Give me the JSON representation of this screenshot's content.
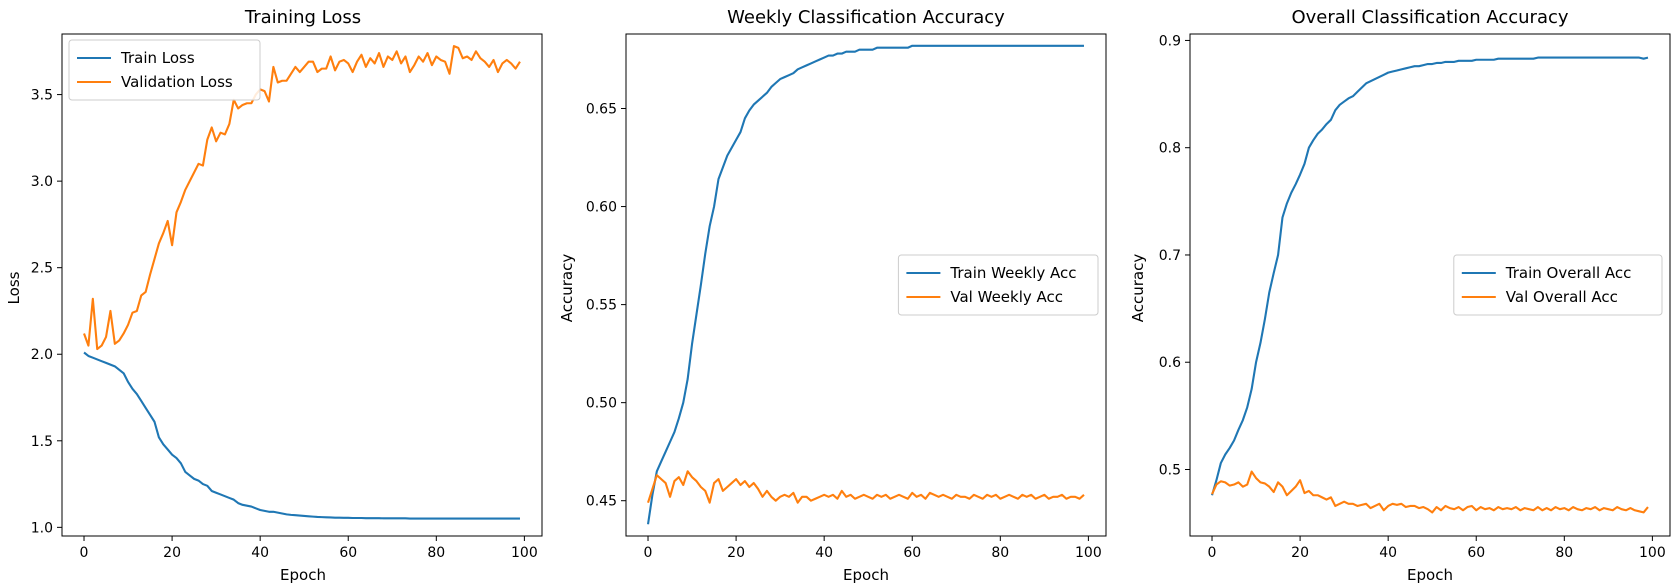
{
  "chart_data": [
    {
      "type": "line",
      "title": "Training Loss",
      "xlabel": "Epoch",
      "ylabel": "Loss",
      "xlim": [
        -5,
        104
      ],
      "ylim": [
        0.95,
        3.85
      ],
      "xticks": [
        0,
        20,
        40,
        60,
        80,
        100
      ],
      "yticks": [
        1.0,
        1.5,
        2.0,
        2.5,
        3.0,
        3.5
      ],
      "tick_decimals": 1,
      "grid": false,
      "legend_position": "top-left",
      "x_start": 0,
      "series": [
        {
          "name": "Train Loss",
          "color": "#1f77b4",
          "values": [
            2.01,
            1.99,
            1.98,
            1.97,
            1.96,
            1.95,
            1.94,
            1.93,
            1.91,
            1.89,
            1.84,
            1.8,
            1.77,
            1.73,
            1.69,
            1.65,
            1.61,
            1.52,
            1.48,
            1.45,
            1.42,
            1.4,
            1.37,
            1.32,
            1.3,
            1.28,
            1.27,
            1.25,
            1.24,
            1.21,
            1.2,
            1.19,
            1.18,
            1.17,
            1.16,
            1.14,
            1.13,
            1.125,
            1.12,
            1.11,
            1.1,
            1.095,
            1.09,
            1.09,
            1.085,
            1.08,
            1.075,
            1.072,
            1.07,
            1.068,
            1.066,
            1.064,
            1.062,
            1.06,
            1.059,
            1.058,
            1.057,
            1.056,
            1.056,
            1.055,
            1.055,
            1.054,
            1.054,
            1.054,
            1.053,
            1.053,
            1.053,
            1.053,
            1.052,
            1.052,
            1.052,
            1.052,
            1.052,
            1.052,
            1.051,
            1.051,
            1.051,
            1.051,
            1.051,
            1.051,
            1.051,
            1.051,
            1.051,
            1.051,
            1.051,
            1.051,
            1.051,
            1.051,
            1.051,
            1.051,
            1.051,
            1.051,
            1.051,
            1.051,
            1.051,
            1.051,
            1.051,
            1.051,
            1.051,
            1.051
          ]
        },
        {
          "name": "Validation Loss",
          "color": "#ff7f0e",
          "values": [
            2.12,
            2.05,
            2.32,
            2.03,
            2.05,
            2.1,
            2.25,
            2.06,
            2.08,
            2.12,
            2.17,
            2.24,
            2.25,
            2.34,
            2.36,
            2.46,
            2.55,
            2.64,
            2.7,
            2.77,
            2.63,
            2.82,
            2.88,
            2.95,
            3.0,
            3.05,
            3.1,
            3.09,
            3.24,
            3.31,
            3.23,
            3.28,
            3.27,
            3.33,
            3.47,
            3.42,
            3.44,
            3.45,
            3.45,
            3.5,
            3.53,
            3.52,
            3.46,
            3.66,
            3.57,
            3.58,
            3.58,
            3.62,
            3.66,
            3.63,
            3.66,
            3.69,
            3.69,
            3.63,
            3.65,
            3.65,
            3.72,
            3.64,
            3.69,
            3.7,
            3.68,
            3.63,
            3.69,
            3.73,
            3.66,
            3.71,
            3.68,
            3.74,
            3.66,
            3.72,
            3.7,
            3.75,
            3.68,
            3.72,
            3.63,
            3.67,
            3.72,
            3.69,
            3.74,
            3.67,
            3.72,
            3.7,
            3.69,
            3.62,
            3.78,
            3.77,
            3.71,
            3.72,
            3.7,
            3.75,
            3.71,
            3.69,
            3.66,
            3.7,
            3.63,
            3.68,
            3.7,
            3.68,
            3.65,
            3.69
          ]
        }
      ]
    },
    {
      "type": "line",
      "title": "Weekly Classification Accuracy",
      "xlabel": "Epoch",
      "ylabel": "Accuracy",
      "xlim": [
        -5,
        104
      ],
      "ylim": [
        0.432,
        0.688
      ],
      "xticks": [
        0,
        20,
        40,
        60,
        80,
        100
      ],
      "yticks": [
        0.45,
        0.5,
        0.55,
        0.6,
        0.65
      ],
      "tick_decimals": 2,
      "grid": false,
      "legend_position": "center-right",
      "x_start": 0,
      "series": [
        {
          "name": "Train Weekly Acc",
          "color": "#1f77b4",
          "values": [
            0.438,
            0.453,
            0.465,
            0.47,
            0.475,
            0.48,
            0.485,
            0.492,
            0.5,
            0.512,
            0.53,
            0.545,
            0.56,
            0.576,
            0.59,
            0.6,
            0.614,
            0.62,
            0.626,
            0.63,
            0.634,
            0.638,
            0.645,
            0.649,
            0.652,
            0.654,
            0.656,
            0.658,
            0.661,
            0.663,
            0.665,
            0.666,
            0.667,
            0.668,
            0.67,
            0.671,
            0.672,
            0.673,
            0.674,
            0.675,
            0.676,
            0.677,
            0.677,
            0.678,
            0.678,
            0.679,
            0.679,
            0.679,
            0.68,
            0.68,
            0.68,
            0.68,
            0.681,
            0.681,
            0.681,
            0.681,
            0.681,
            0.681,
            0.681,
            0.681,
            0.682,
            0.682,
            0.682,
            0.682,
            0.682,
            0.682,
            0.682,
            0.682,
            0.682,
            0.682,
            0.682,
            0.682,
            0.682,
            0.682,
            0.682,
            0.682,
            0.682,
            0.682,
            0.682,
            0.682,
            0.682,
            0.682,
            0.682,
            0.682,
            0.682,
            0.682,
            0.682,
            0.682,
            0.682,
            0.682,
            0.682,
            0.682,
            0.682,
            0.682,
            0.682,
            0.682,
            0.682,
            0.682,
            0.682,
            0.682
          ]
        },
        {
          "name": "Val Weekly Acc",
          "color": "#ff7f0e",
          "values": [
            0.449,
            0.456,
            0.463,
            0.461,
            0.459,
            0.452,
            0.46,
            0.462,
            0.458,
            0.465,
            0.462,
            0.46,
            0.457,
            0.455,
            0.449,
            0.459,
            0.461,
            0.455,
            0.457,
            0.459,
            0.461,
            0.458,
            0.46,
            0.457,
            0.459,
            0.456,
            0.452,
            0.455,
            0.452,
            0.45,
            0.452,
            0.453,
            0.452,
            0.454,
            0.449,
            0.452,
            0.452,
            0.45,
            0.451,
            0.452,
            0.453,
            0.452,
            0.453,
            0.451,
            0.455,
            0.452,
            0.453,
            0.451,
            0.452,
            0.453,
            0.452,
            0.451,
            0.453,
            0.452,
            0.453,
            0.451,
            0.452,
            0.453,
            0.452,
            0.451,
            0.454,
            0.452,
            0.453,
            0.451,
            0.454,
            0.453,
            0.452,
            0.453,
            0.452,
            0.451,
            0.453,
            0.452,
            0.452,
            0.451,
            0.453,
            0.452,
            0.451,
            0.453,
            0.452,
            0.453,
            0.451,
            0.452,
            0.453,
            0.452,
            0.451,
            0.453,
            0.452,
            0.453,
            0.451,
            0.452,
            0.453,
            0.451,
            0.452,
            0.452,
            0.453,
            0.451,
            0.452,
            0.452,
            0.451,
            0.453
          ]
        }
      ]
    },
    {
      "type": "line",
      "title": "Overall Classification Accuracy",
      "xlabel": "Epoch",
      "ylabel": "Accuracy",
      "xlim": [
        -5,
        104
      ],
      "ylim": [
        0.438,
        0.906
      ],
      "xticks": [
        0,
        20,
        40,
        60,
        80,
        100
      ],
      "yticks": [
        0.5,
        0.6,
        0.7,
        0.8,
        0.9
      ],
      "tick_decimals": 1,
      "grid": false,
      "legend_position": "center-right",
      "x_start": 0,
      "series": [
        {
          "name": "Train Overall Acc",
          "color": "#1f77b4",
          "values": [
            0.476,
            0.49,
            0.506,
            0.514,
            0.52,
            0.527,
            0.537,
            0.546,
            0.558,
            0.575,
            0.6,
            0.618,
            0.64,
            0.665,
            0.683,
            0.7,
            0.735,
            0.748,
            0.758,
            0.766,
            0.775,
            0.785,
            0.8,
            0.807,
            0.813,
            0.817,
            0.822,
            0.826,
            0.835,
            0.84,
            0.843,
            0.846,
            0.848,
            0.852,
            0.856,
            0.86,
            0.862,
            0.864,
            0.866,
            0.868,
            0.87,
            0.871,
            0.872,
            0.873,
            0.874,
            0.875,
            0.876,
            0.876,
            0.877,
            0.878,
            0.878,
            0.879,
            0.879,
            0.88,
            0.88,
            0.88,
            0.881,
            0.881,
            0.881,
            0.881,
            0.882,
            0.882,
            0.882,
            0.882,
            0.882,
            0.883,
            0.883,
            0.883,
            0.883,
            0.883,
            0.883,
            0.883,
            0.883,
            0.883,
            0.884,
            0.884,
            0.884,
            0.884,
            0.884,
            0.884,
            0.884,
            0.884,
            0.884,
            0.884,
            0.884,
            0.884,
            0.884,
            0.884,
            0.884,
            0.884,
            0.884,
            0.884,
            0.884,
            0.884,
            0.884,
            0.884,
            0.884,
            0.884,
            0.883,
            0.884
          ]
        },
        {
          "name": "Val Overall Acc",
          "color": "#ff7f0e",
          "values": [
            0.477,
            0.486,
            0.489,
            0.488,
            0.485,
            0.486,
            0.488,
            0.484,
            0.486,
            0.498,
            0.492,
            0.488,
            0.487,
            0.484,
            0.479,
            0.488,
            0.484,
            0.476,
            0.48,
            0.484,
            0.49,
            0.478,
            0.48,
            0.476,
            0.476,
            0.474,
            0.472,
            0.474,
            0.466,
            0.468,
            0.47,
            0.468,
            0.468,
            0.466,
            0.467,
            0.468,
            0.464,
            0.466,
            0.468,
            0.462,
            0.466,
            0.468,
            0.467,
            0.468,
            0.465,
            0.466,
            0.466,
            0.464,
            0.465,
            0.463,
            0.46,
            0.465,
            0.462,
            0.466,
            0.464,
            0.463,
            0.465,
            0.462,
            0.465,
            0.466,
            0.462,
            0.465,
            0.463,
            0.464,
            0.462,
            0.465,
            0.463,
            0.464,
            0.463,
            0.465,
            0.462,
            0.464,
            0.463,
            0.462,
            0.465,
            0.462,
            0.464,
            0.462,
            0.465,
            0.463,
            0.464,
            0.462,
            0.465,
            0.463,
            0.462,
            0.464,
            0.463,
            0.465,
            0.462,
            0.464,
            0.463,
            0.462,
            0.465,
            0.463,
            0.462,
            0.464,
            0.462,
            0.461,
            0.46,
            0.465
          ]
        }
      ]
    }
  ]
}
